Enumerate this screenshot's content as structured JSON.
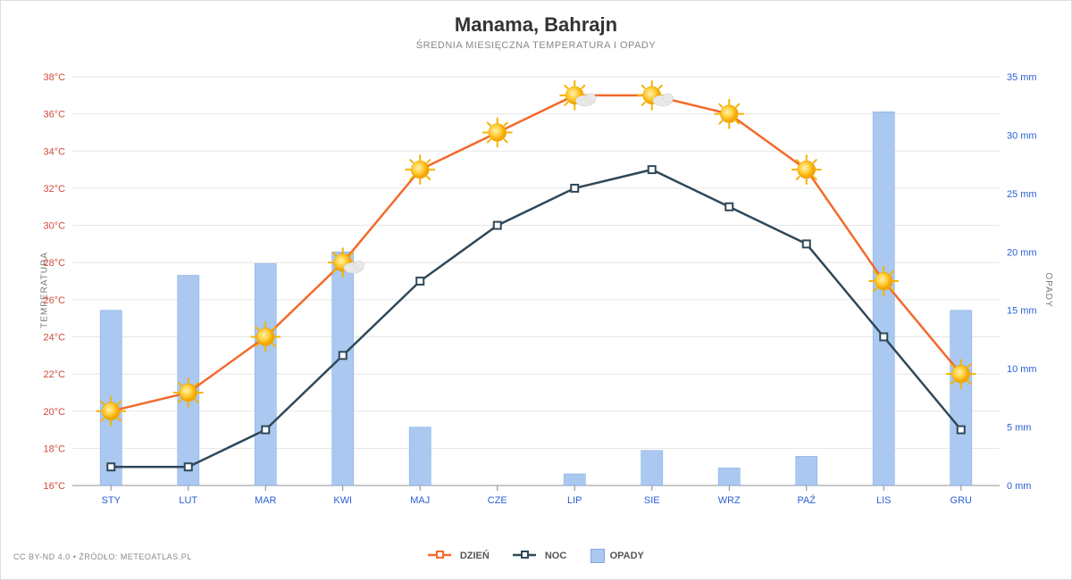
{
  "title": "Manama, Bahrajn",
  "subtitle": "ŚREDNIA MIESIĘCZNA TEMPERATURA I OPADY",
  "y_left_label": "TEMPERATURA",
  "y_right_label": "OPADY",
  "credit": "CC BY-ND 4.0 • ŹRÓDŁO: METEOATLAS.PL",
  "x_labels": [
    "STY",
    "LUT",
    "MAR",
    "KWI",
    "MAJ",
    "CZE",
    "LIP",
    "SIE",
    "WRZ",
    "PAŹ",
    "LIS",
    "GRU"
  ],
  "y_left": {
    "min": 16,
    "max": 38,
    "step": 2,
    "unit": "°C",
    "tick_color": "#d04a3a",
    "tick_fontsize": 11
  },
  "y_right": {
    "min": 0,
    "max": 35,
    "step": 5,
    "unit": " mm",
    "tick_color": "#2a5fd4",
    "tick_fontsize": 11
  },
  "series": {
    "day": {
      "label": "DZIEŃ",
      "color": "#f26a2b",
      "line_width": 2.5,
      "values": [
        20,
        21,
        24,
        28,
        33,
        35,
        37,
        37,
        36,
        33,
        27,
        22
      ],
      "icons": [
        "sun",
        "sun",
        "sun",
        "suncloud",
        "sun",
        "sun",
        "suncloud",
        "suncloud",
        "sun",
        "sun",
        "sun",
        "sun"
      ]
    },
    "night": {
      "label": "NOC",
      "color": "#2f4858",
      "line_width": 2.5,
      "values": [
        17,
        17,
        19,
        23,
        27,
        30,
        32,
        33,
        31,
        29,
        24,
        19
      ]
    },
    "precip": {
      "label": "OPADY",
      "color": "#aac8f0",
      "stroke": "#7ea9e0",
      "values": [
        15,
        18,
        19,
        20,
        5,
        0,
        1,
        3,
        1.5,
        2.5,
        32,
        15
      ]
    }
  },
  "legend_order": [
    "day",
    "night",
    "precip"
  ],
  "bar_width_ratio": 0.28,
  "background_color": "#ffffff",
  "grid_color": "#e5e5e5",
  "title_fontsize": 22,
  "subtitle_fontsize": 11
}
